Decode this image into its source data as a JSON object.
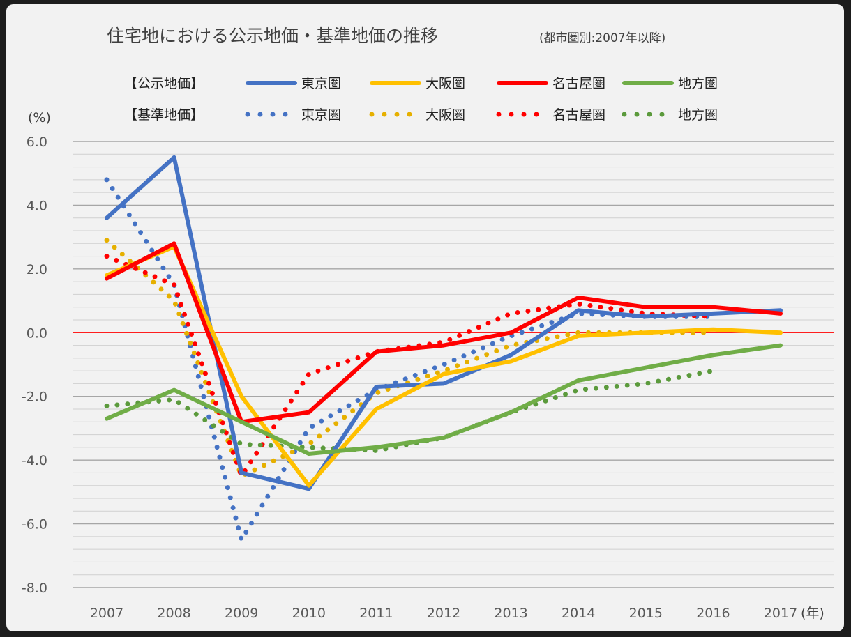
{
  "colors": {
    "background": "#f2f2f2",
    "tokyo": "#4472c4",
    "osaka": "#ffc000",
    "nagoya": "#ff0000",
    "chiho": "#70ad47",
    "zero_line": "#ff0000",
    "grid_major": "#a6a6a6",
    "grid_minor": "#d0d0d0"
  },
  "chart_data": {
    "type": "line",
    "title": "住宅地における公示地価・基準地価の推移",
    "subtitle": "(都市圏別:2007年以降)",
    "ylabel": "(%)",
    "xlabel": "(年)",
    "ylim": [
      -8.0,
      6.0
    ],
    "y_ticks": [
      "6.0",
      "4.0",
      "2.0",
      "0.0",
      "-2.0",
      "-4.0",
      "-6.0",
      "-8.0"
    ],
    "y_tick_values": [
      6,
      4,
      2,
      0,
      -2,
      -4,
      -6,
      -8
    ],
    "x": [
      "2007",
      "2008",
      "2009",
      "2010",
      "2011",
      "2012",
      "2013",
      "2014",
      "2015",
      "2016",
      "2017"
    ],
    "grid": true,
    "legend": {
      "position": "top",
      "koji_label": "【公示地価】",
      "kijun_label": "【基準地価】"
    },
    "series": [
      {
        "group": "公示地価",
        "name": "東京圏",
        "style": "solid",
        "color": "#4472c4",
        "values": [
          3.6,
          5.5,
          -4.4,
          -4.9,
          -1.7,
          -1.6,
          -0.7,
          0.7,
          0.5,
          0.6,
          0.7
        ]
      },
      {
        "group": "公示地価",
        "name": "大阪圏",
        "style": "solid",
        "color": "#ffc000",
        "values": [
          1.8,
          2.7,
          -2.0,
          -4.8,
          -2.4,
          -1.3,
          -0.9,
          -0.1,
          0.0,
          0.1,
          0.0
        ]
      },
      {
        "group": "公示地価",
        "name": "名古屋圏",
        "style": "solid",
        "color": "#ff0000",
        "values": [
          1.7,
          2.8,
          -2.8,
          -2.5,
          -0.6,
          -0.4,
          0.0,
          1.1,
          0.8,
          0.8,
          0.6
        ]
      },
      {
        "group": "公示地価",
        "name": "地方圏",
        "style": "solid",
        "color": "#70ad47",
        "values": [
          -2.7,
          -1.8,
          -2.8,
          -3.8,
          -3.6,
          -3.3,
          -2.5,
          -1.5,
          -1.1,
          -0.7,
          -0.4
        ]
      },
      {
        "group": "基準地価",
        "name": "東京圏",
        "style": "dotted",
        "color": "#4472c4",
        "values": [
          4.8,
          1.5,
          -6.5,
          -3.0,
          -1.8,
          -1.0,
          -0.1,
          0.6,
          0.5,
          0.5,
          null
        ]
      },
      {
        "group": "基準地価",
        "name": "大阪圏",
        "style": "dotted",
        "color": "#e6b000",
        "values": [
          2.9,
          1.0,
          -4.5,
          -3.5,
          -1.9,
          -1.2,
          -0.4,
          0.0,
          0.0,
          0.0,
          null
        ]
      },
      {
        "group": "基準地価",
        "name": "名古屋圏",
        "style": "dotted",
        "color": "#ff0000",
        "values": [
          2.4,
          1.5,
          -4.5,
          -1.3,
          -0.6,
          -0.3,
          0.6,
          0.9,
          0.6,
          0.5,
          null
        ]
      },
      {
        "group": "基準地価",
        "name": "地方圏",
        "style": "dotted",
        "color": "#5b9a3c",
        "values": [
          -2.3,
          -2.1,
          -3.5,
          -3.6,
          -3.7,
          -3.3,
          -2.5,
          -1.8,
          -1.6,
          -1.2,
          null
        ]
      }
    ]
  }
}
